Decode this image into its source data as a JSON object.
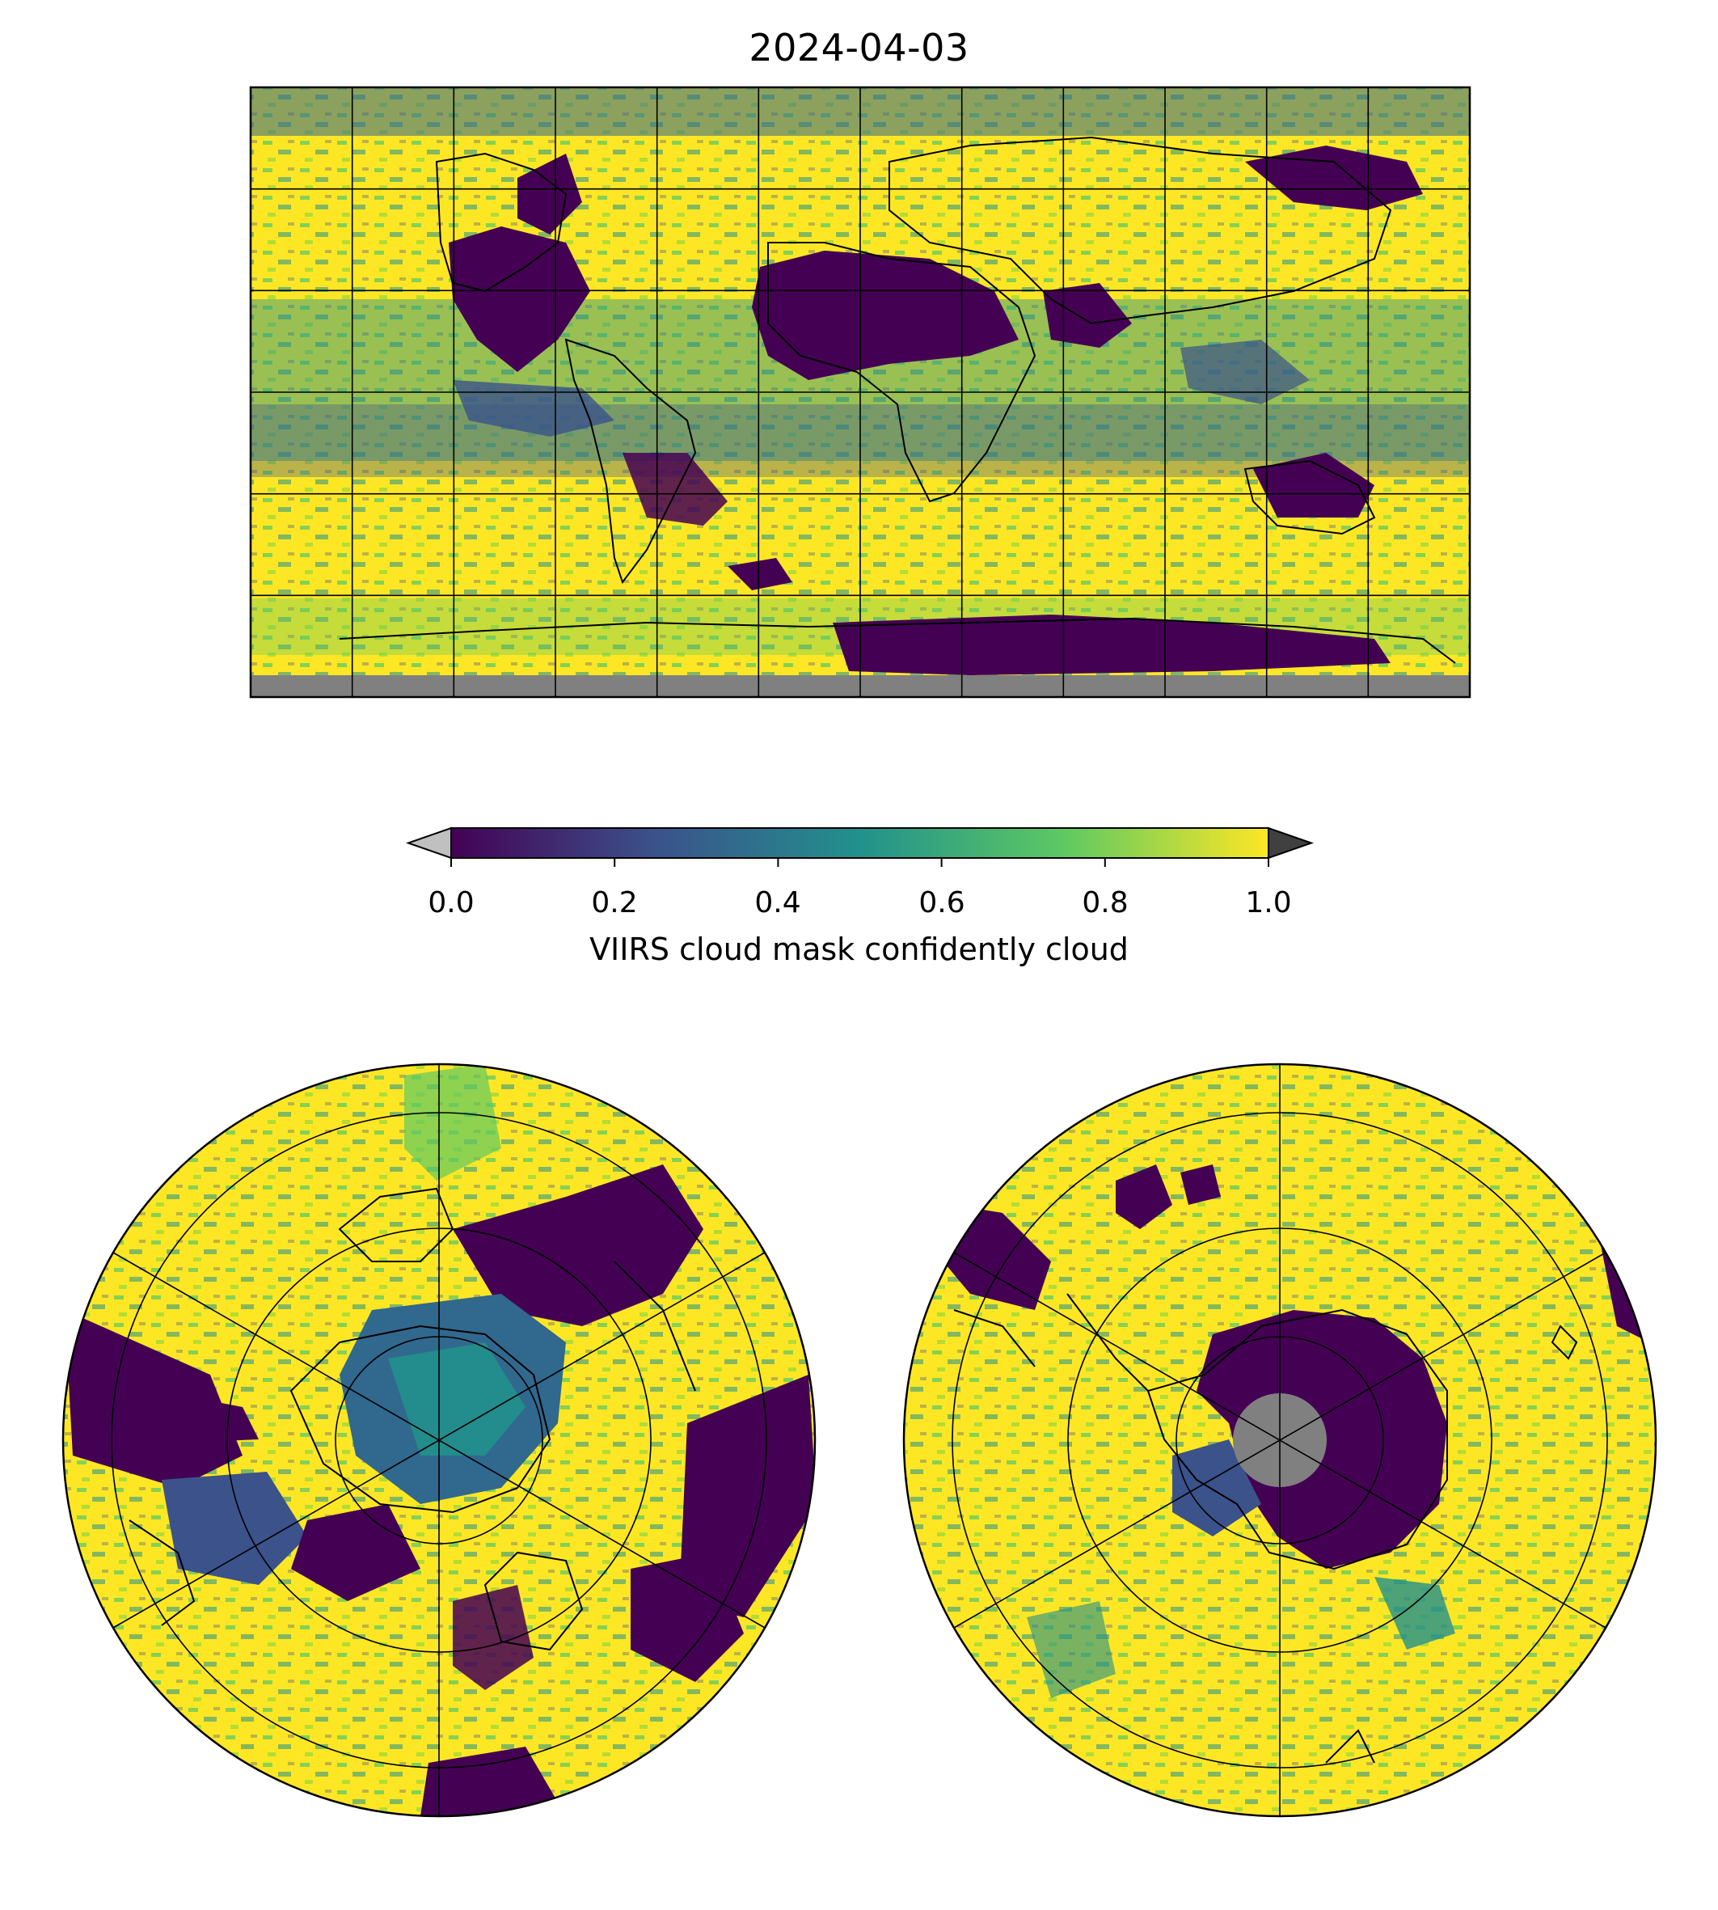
{
  "title": "2024-04-03",
  "colorbar": {
    "label": "VIIRS cloud mask confidently cloud",
    "ticks": [
      "0.0",
      "0.2",
      "0.4",
      "0.6",
      "0.8",
      "1.0"
    ],
    "range": [
      0.0,
      1.0
    ],
    "extend": "both",
    "under_color": "#c0c0c0",
    "over_color": "#404040",
    "colormap": "viridis",
    "colormap_stops": [
      "#440154",
      "#3b528b",
      "#21918c",
      "#5ec962",
      "#fde725"
    ]
  },
  "maps": [
    {
      "name": "global-equirectangular-map",
      "projection": "plate-carree",
      "nodata_color": "#808080"
    },
    {
      "name": "north-polar-map",
      "projection": "north-polar-stereographic"
    },
    {
      "name": "south-polar-map",
      "projection": "south-polar-stereographic",
      "nodata_color": "#808080"
    }
  ]
}
